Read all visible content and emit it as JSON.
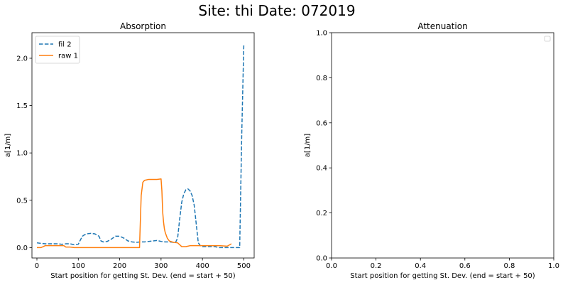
{
  "figure": {
    "title": "Site: thi Date: 072019"
  },
  "chart_data": [
    {
      "type": "line",
      "title": "Absorption",
      "xlabel": "Start position for getting St. Dev. (end = start + 50)",
      "ylabel": "a[1/m]",
      "xlim": [
        -12,
        525
      ],
      "ylim": [
        -0.11,
        2.27
      ],
      "xticks": [
        0,
        100,
        200,
        300,
        400,
        500
      ],
      "xtick_labels": [
        "0",
        "100",
        "200",
        "300",
        "400",
        "500"
      ],
      "yticks": [
        0.0,
        0.5,
        1.0,
        1.5,
        2.0
      ],
      "ytick_labels": [
        "0.0",
        "0.5",
        "1.0",
        "1.5",
        "2.0"
      ],
      "grid": false,
      "legend_position": "top-left",
      "series": [
        {
          "name": "fil 2",
          "color": "#1f77b4",
          "style": "dashed",
          "x": [
            0,
            10,
            20,
            30,
            40,
            50,
            60,
            70,
            80,
            90,
            100,
            105,
            110,
            115,
            120,
            130,
            140,
            150,
            155,
            160,
            170,
            180,
            190,
            200,
            210,
            220,
            230,
            240,
            250,
            260,
            270,
            280,
            290,
            300,
            310,
            320,
            330,
            335,
            340,
            345,
            350,
            355,
            360,
            365,
            370,
            375,
            380,
            385,
            390,
            395,
            400,
            410,
            420,
            430,
            440,
            450,
            460,
            470,
            480,
            490,
            495,
            500
          ],
          "y": [
            0.05,
            0.045,
            0.04,
            0.04,
            0.04,
            0.04,
            0.035,
            0.04,
            0.04,
            0.03,
            0.035,
            0.08,
            0.12,
            0.135,
            0.145,
            0.15,
            0.145,
            0.12,
            0.07,
            0.06,
            0.065,
            0.09,
            0.12,
            0.12,
            0.1,
            0.07,
            0.06,
            0.055,
            0.06,
            0.06,
            0.065,
            0.07,
            0.075,
            0.065,
            0.06,
            0.06,
            0.055,
            0.055,
            0.1,
            0.3,
            0.48,
            0.57,
            0.61,
            0.62,
            0.6,
            0.55,
            0.45,
            0.25,
            0.05,
            0.02,
            0.01,
            0.01,
            0.01,
            0.01,
            0.0,
            0.0,
            0.0,
            0.0,
            0.0,
            0.0,
            1.2,
            2.15
          ]
        },
        {
          "name": "raw 1",
          "color": "#ff7f0e",
          "style": "solid",
          "x": [
            0,
            10,
            15,
            20,
            30,
            40,
            50,
            60,
            65,
            70,
            80,
            90,
            100,
            120,
            140,
            160,
            180,
            200,
            220,
            240,
            248,
            249,
            252,
            256,
            260,
            270,
            280,
            290,
            300,
            302,
            304,
            306,
            308,
            310,
            315,
            320,
            330,
            340,
            345,
            350,
            360,
            370,
            380,
            390,
            400,
            420,
            440,
            460,
            470
          ],
          "y": [
            0.0,
            0.0,
            0.01,
            0.02,
            0.02,
            0.02,
            0.02,
            0.02,
            0.02,
            0.005,
            0.005,
            0.0,
            0.0,
            0.0,
            0.0,
            0.0,
            0.0,
            0.0,
            0.0,
            0.0,
            0.0,
            0.15,
            0.55,
            0.69,
            0.71,
            0.72,
            0.72,
            0.72,
            0.725,
            0.6,
            0.37,
            0.27,
            0.2,
            0.16,
            0.1,
            0.07,
            0.055,
            0.05,
            0.03,
            0.01,
            0.01,
            0.02,
            0.02,
            0.02,
            0.02,
            0.02,
            0.02,
            0.015,
            0.04
          ]
        }
      ]
    },
    {
      "type": "line",
      "title": "Attenuation",
      "xlabel": "Start position for getting St. Dev. (end = start + 50)",
      "ylabel": "a[1/m]",
      "xlim": [
        0,
        1
      ],
      "ylim": [
        0,
        1
      ],
      "xticks": [
        0,
        0.2,
        0.4,
        0.6,
        0.8,
        1.0
      ],
      "xtick_labels": [
        "0.0",
        "0.2",
        "0.4",
        "0.6",
        "0.8",
        "1.0"
      ],
      "yticks": [
        0,
        0.2,
        0.4,
        0.6,
        0.8,
        1.0
      ],
      "ytick_labels": [
        "0.0",
        "0.2",
        "0.4",
        "0.6",
        "0.8",
        "1.0"
      ],
      "grid": false,
      "legend_position": "top-right",
      "series": []
    }
  ]
}
